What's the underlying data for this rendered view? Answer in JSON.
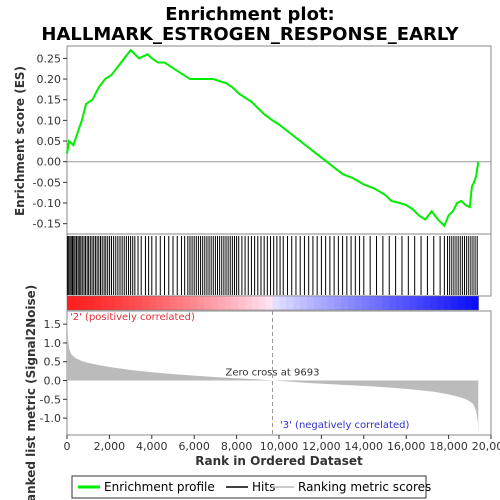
{
  "title_line1": "Enrichment plot:",
  "title_line2": "HALLMARK_ESTROGEN_RESPONSE_EARLY",
  "colors": {
    "profile": "#00ee00",
    "hits": "#000000",
    "metric_fill": "#bbbbbb",
    "positive": "#ff0000",
    "negative": "#0000ff"
  },
  "labels": {
    "es_axis": "Enrichment score (ES)",
    "metric_axis": "Ranked list metric (Signal2Noise)",
    "x_axis": "Rank in Ordered Dataset",
    "positive_corr": "'2' (positively correlated)",
    "negative_corr": "'3' (negatively correlated)",
    "zero_cross": "Zero cross at 9693"
  },
  "legend": [
    {
      "name": "Enrichment profile",
      "icon": "green-line"
    },
    {
      "name": "Hits",
      "icon": "black-line"
    },
    {
      "name": "Ranking metric scores",
      "icon": "gray-line"
    }
  ],
  "chart_data": {
    "type": "line",
    "x_range": [
      0,
      20000
    ],
    "n_genes": 19400,
    "zero_cross": 9693,
    "x_ticks": [
      "0",
      "2,000",
      "4,000",
      "6,000",
      "8,000",
      "10,000",
      "12,000",
      "14,000",
      "16,000",
      "18,000",
      "20,000"
    ],
    "x_tick_values": [
      0,
      2000,
      4000,
      6000,
      8000,
      10000,
      12000,
      14000,
      16000,
      18000,
      20000
    ],
    "es_ylim": [
      -0.175,
      0.28
    ],
    "es_ticks": [
      "0.25",
      "0.20",
      "0.15",
      "0.10",
      "0.05",
      "0.00",
      "-0.05",
      "-0.10",
      "-0.15"
    ],
    "es_tick_values": [
      0.25,
      0.2,
      0.15,
      0.1,
      0.05,
      0.0,
      -0.05,
      -0.1,
      -0.15
    ],
    "metric_ylim": [
      -1.45,
      1.85
    ],
    "metric_ticks": [
      "1.5",
      "1.0",
      "0.5",
      "0.0",
      "-0.5",
      "-1.0"
    ],
    "metric_tick_values": [
      1.5,
      1.0,
      0.5,
      0.0,
      -0.5,
      -1.0
    ],
    "es_profile": {
      "x": [
        0,
        100,
        300,
        500,
        700,
        900,
        1200,
        1500,
        1800,
        2100,
        2400,
        2700,
        3000,
        3400,
        3800,
        4000,
        4300,
        4600,
        4900,
        5200,
        5500,
        5800,
        6000,
        6300,
        6600,
        6900,
        7200,
        7500,
        7800,
        8100,
        8400,
        8700,
        9000,
        9300,
        9693,
        10000,
        10500,
        11000,
        11500,
        12000,
        12500,
        13000,
        13500,
        14000,
        14500,
        15000,
        15300,
        15700,
        16000,
        16300,
        16600,
        16900,
        17200,
        17500,
        17800,
        18000,
        18200,
        18400,
        18600,
        18800,
        19000,
        19100,
        19200,
        19300,
        19400
      ],
      "y": [
        0.02,
        0.05,
        0.04,
        0.07,
        0.1,
        0.14,
        0.15,
        0.18,
        0.2,
        0.21,
        0.23,
        0.25,
        0.27,
        0.25,
        0.26,
        0.25,
        0.24,
        0.24,
        0.23,
        0.22,
        0.21,
        0.2,
        0.2,
        0.2,
        0.2,
        0.2,
        0.195,
        0.19,
        0.18,
        0.165,
        0.155,
        0.145,
        0.13,
        0.115,
        0.1,
        0.09,
        0.07,
        0.05,
        0.03,
        0.01,
        -0.01,
        -0.03,
        -0.04,
        -0.055,
        -0.065,
        -0.08,
        -0.095,
        -0.1,
        -0.105,
        -0.115,
        -0.13,
        -0.14,
        -0.12,
        -0.14,
        -0.155,
        -0.13,
        -0.12,
        -0.1,
        -0.095,
        -0.105,
        -0.11,
        -0.06,
        -0.05,
        -0.035,
        0.0
      ]
    },
    "hits": [
      30,
      80,
      140,
      200,
      260,
      320,
      380,
      450,
      520,
      580,
      650,
      720,
      800,
      870,
      950,
      1020,
      1100,
      1180,
      1260,
      1340,
      1420,
      1500,
      1580,
      1660,
      1750,
      1830,
      1920,
      2010,
      2100,
      2200,
      2300,
      2400,
      2500,
      2600,
      2700,
      2800,
      2900,
      3000,
      3100,
      3200,
      3350,
      3500,
      3700,
      3850,
      4000,
      4200,
      4400,
      4600,
      4800,
      5000,
      5200,
      5400,
      5550,
      5700,
      5800,
      5900,
      6000,
      6100,
      6200,
      6300,
      6400,
      6500,
      6600,
      6700,
      6800,
      6900,
      7000,
      7100,
      7200,
      7300,
      7400,
      7500,
      7600,
      7700,
      7800,
      7900,
      8000,
      8100,
      8250,
      8400,
      8550,
      8700,
      8850,
      9000,
      9150,
      9300,
      9450,
      9600,
      9750,
      9900,
      10050,
      10200,
      10400,
      10600,
      10800,
      11000,
      11200,
      11400,
      11600,
      11800,
      12000,
      12200,
      12400,
      12600,
      12800,
      13000,
      13200,
      13400,
      13600,
      13800,
      14000,
      14300,
      14600,
      14900,
      15200,
      15500,
      15800,
      16100,
      16400,
      16700,
      17000,
      17300,
      17600,
      17800,
      17950,
      18050,
      18150,
      18250,
      18350,
      18450,
      18550,
      18650,
      18750,
      18850,
      18950,
      19050,
      19150,
      19250,
      19350
    ],
    "metric": {
      "x": [
        0,
        50,
        100,
        200,
        400,
        700,
        1000,
        1500,
        2000,
        3000,
        4000,
        5000,
        6000,
        7000,
        8000,
        9000,
        9693,
        10500,
        11500,
        12500,
        13500,
        14500,
        15500,
        16500,
        17300,
        18000,
        18500,
        18900,
        19150,
        19300,
        19380,
        19400
      ],
      "y": [
        1.7,
        1.1,
        0.85,
        0.7,
        0.6,
        0.52,
        0.47,
        0.41,
        0.36,
        0.28,
        0.22,
        0.17,
        0.13,
        0.09,
        0.06,
        0.03,
        0.0,
        -0.03,
        -0.07,
        -0.1,
        -0.13,
        -0.16,
        -0.2,
        -0.25,
        -0.3,
        -0.37,
        -0.44,
        -0.52,
        -0.62,
        -0.8,
        -1.1,
        -1.4
      ]
    }
  }
}
